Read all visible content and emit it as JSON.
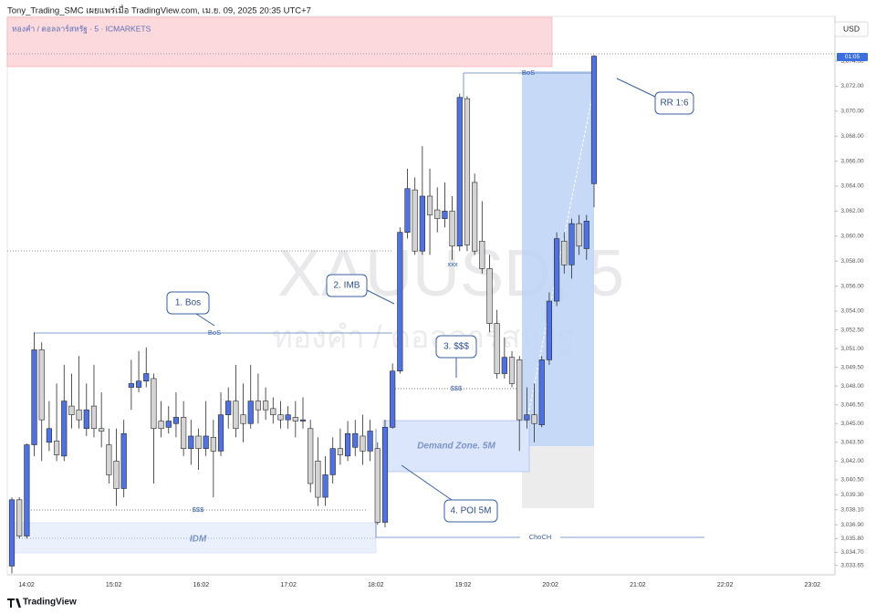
{
  "header": {
    "publisher": "Tony_Trading_SMC เผยแพร่เมื่อ TradingView.com, เม.ย. 09, 2025 20:35 UTC+7"
  },
  "chart_data": {
    "type": "candlestick",
    "symbol_label": "ทองคำ / ดอลลาร์สหรัฐ · 5 · ICMARKETS",
    "watermark": "XAUUSD, 5",
    "watermark_sub": "ทองคำ / ดอลลาร์สหรัฐ",
    "currency": "USD",
    "price_badge": "01:05",
    "up_color": "#4f72e0",
    "down_color": "#d4d4d4",
    "open": [
      3033.6,
      3038.9,
      3036.0,
      3043.3,
      3050.9,
      3043.5,
      3043.6,
      3042.4,
      3046.4,
      3046.1,
      3044.6,
      3046.4,
      3044.6,
      3043.3,
      3042.0,
      3039.8,
      3047.9,
      3047.9,
      3048.4,
      3048.6,
      3045.2,
      3044.7,
      3045.0,
      3045.5,
      3043.0,
      3044.0,
      3043.0,
      3043.9,
      3042.8,
      3045.7,
      3046.8,
      3045.7,
      3045.0,
      3046.8,
      3046.8,
      3046.2,
      3045.7,
      3045.3,
      3045.5,
      3045.2,
      3044.6,
      3042.0,
      3039.1,
      3040.9,
      3043.0,
      3042.4,
      3043.1,
      3044.0,
      3042.8,
      3043.0,
      3037.1,
      3044.7,
      3049.2,
      3060.3,
      3063.7,
      3058.8,
      3063.2,
      3062.1,
      3061.4,
      3062.0,
      3059.2,
      3071.0,
      3064.3,
      3059.6,
      3057.4,
      3053.0,
      3049.0,
      3050.3,
      3050.1,
      3045.3,
      3045.7,
      3044.9,
      3050.1,
      3054.8,
      3059.6,
      3057.7,
      3061.0,
      3059.0,
      3064.2
    ],
    "high": [
      3039.1,
      3039.1,
      3043.4,
      3052.3,
      3051.5,
      3046.8,
      3048.2,
      3049.7,
      3049.0,
      3050.4,
      3048.2,
      3049.7,
      3047.5,
      3044.6,
      3044.6,
      3045.3,
      3050.1,
      3050.8,
      3051.1,
      3049.0,
      3046.8,
      3046.4,
      3047.5,
      3046.8,
      3045.3,
      3044.6,
      3046.8,
      3045.3,
      3047.5,
      3047.9,
      3049.7,
      3048.2,
      3049.7,
      3049.0,
      3047.9,
      3047.1,
      3046.8,
      3046.4,
      3046.8,
      3047.1,
      3045.3,
      3043.9,
      3042.4,
      3043.9,
      3044.6,
      3045.2,
      3045.3,
      3045.7,
      3045.3,
      3043.5,
      3045.3,
      3049.8,
      3060.7,
      3065.4,
      3064.7,
      3067.2,
      3065.4,
      3063.9,
      3064.3,
      3063.2,
      3071.4,
      3071.2,
      3065.0,
      3062.8,
      3058.5,
      3054.1,
      3051.9,
      3050.8,
      3050.4,
      3047.9,
      3048.2,
      3050.4,
      3055.5,
      3060.3,
      3060.3,
      3061.4,
      3061.7,
      3061.7,
      3074.5
    ],
    "low": [
      3033.0,
      3035.8,
      3035.8,
      3042.4,
      3042.0,
      3042.8,
      3042.0,
      3042.0,
      3044.6,
      3044.6,
      3044.0,
      3043.9,
      3043.1,
      3040.2,
      3038.4,
      3039.1,
      3046.1,
      3047.5,
      3047.9,
      3040.2,
      3043.9,
      3044.2,
      3043.9,
      3042.4,
      3041.7,
      3041.3,
      3042.4,
      3039.1,
      3042.4,
      3044.6,
      3043.9,
      3043.5,
      3044.6,
      3045.0,
      3045.3,
      3045.0,
      3044.6,
      3044.6,
      3043.9,
      3044.6,
      3039.5,
      3038.4,
      3038.4,
      3040.2,
      3041.7,
      3042.0,
      3042.4,
      3041.7,
      3042.0,
      3036.9,
      3036.7,
      3044.6,
      3049.0,
      3059.8,
      3058.5,
      3058.5,
      3058.5,
      3060.3,
      3060.7,
      3058.1,
      3058.8,
      3058.8,
      3058.5,
      3057.0,
      3052.3,
      3048.6,
      3048.6,
      3047.9,
      3042.8,
      3044.6,
      3043.5,
      3044.7,
      3049.7,
      3054.4,
      3057.0,
      3056.6,
      3058.5,
      3058.1,
      3062.3
    ],
    "close": [
      3038.9,
      3036.0,
      3043.3,
      3050.9,
      3045.3,
      3044.6,
      3042.5,
      3046.8,
      3045.7,
      3045.3,
      3046.1,
      3044.6,
      3044.4,
      3040.9,
      3039.8,
      3044.2,
      3048.2,
      3048.4,
      3049.0,
      3044.6,
      3044.6,
      3045.2,
      3045.5,
      3043.0,
      3044.0,
      3043.0,
      3044.0,
      3042.8,
      3045.7,
      3046.8,
      3044.6,
      3045.0,
      3046.8,
      3046.1,
      3046.1,
      3045.7,
      3045.3,
      3045.7,
      3045.2,
      3045.3,
      3040.2,
      3039.1,
      3040.9,
      3043.0,
      3042.5,
      3044.2,
      3044.2,
      3042.8,
      3044.4,
      3037.1,
      3044.7,
      3049.2,
      3060.3,
      3063.8,
      3058.8,
      3063.2,
      3061.7,
      3061.4,
      3062.0,
      3059.2,
      3071.1,
      3059.3,
      3058.8,
      3057.4,
      3053.0,
      3049.0,
      3050.3,
      3048.2,
      3045.3,
      3045.7,
      3045.0,
      3050.1,
      3054.8,
      3059.8,
      3057.7,
      3061.0,
      3059.2,
      3061.2,
      3074.4
    ],
    "ylim": [
      3032.9,
      3077.8
    ],
    "yticks": [
      {
        "value": 3074,
        "label": "3,074.00"
      },
      {
        "value": 3072,
        "label": "3,072.00"
      },
      {
        "value": 3070,
        "label": "3,070.00"
      },
      {
        "value": 3068,
        "label": "3,068.00"
      },
      {
        "value": 3066,
        "label": "3,066.00"
      },
      {
        "value": 3064,
        "label": "3,064.00"
      },
      {
        "value": 3062,
        "label": "3,062.00"
      },
      {
        "value": 3060,
        "label": "3,060.00"
      },
      {
        "value": 3058,
        "label": "3,058.00"
      },
      {
        "value": 3056,
        "label": "3,056.00"
      },
      {
        "value": 3054,
        "label": "3,054.00"
      },
      {
        "value": 3052.5,
        "label": "3,052.50"
      },
      {
        "value": 3051,
        "label": "3,051.00"
      },
      {
        "value": 3049.5,
        "label": "3,049.50"
      },
      {
        "value": 3048,
        "label": "3,048.00"
      },
      {
        "value": 3046.5,
        "label": "3,046.50"
      },
      {
        "value": 3045,
        "label": "3,045.00"
      },
      {
        "value": 3043.5,
        "label": "3,043.50"
      },
      {
        "value": 3042,
        "label": "3,042.00"
      },
      {
        "value": 3040.5,
        "label": "3,040.50"
      },
      {
        "value": 3039.3,
        "label": "3,039.30"
      },
      {
        "value": 3038.1,
        "label": "3,038.10"
      },
      {
        "value": 3036.9,
        "label": "3,036.90"
      },
      {
        "value": 3035.8,
        "label": "3,035.80"
      },
      {
        "value": 3034.7,
        "label": "3,034.70"
      },
      {
        "value": 3033.65,
        "label": "3,033.65"
      }
    ],
    "time_labels": [
      "14:02",
      "15:02",
      "16:02",
      "17:02",
      "18:02",
      "19:02",
      "20:02",
      "21:02",
      "22:02",
      "23:02"
    ],
    "annotations": {
      "bos_1": "BoS",
      "bos_2": "BoS",
      "liquidity_1": "$$$",
      "liquidity_2": "$$$",
      "xxx": "xxx",
      "choch": "ChoCH",
      "idm": "IDM",
      "demand_zone": "Demand Zone. 5M",
      "callout_1": "1. Bos",
      "callout_2": "2. IMB",
      "callout_3": "3. $$$",
      "callout_4": "4. POI 5M",
      "callout_rr": "RR 1:6"
    }
  },
  "footer": {
    "brand": "TradingView"
  }
}
